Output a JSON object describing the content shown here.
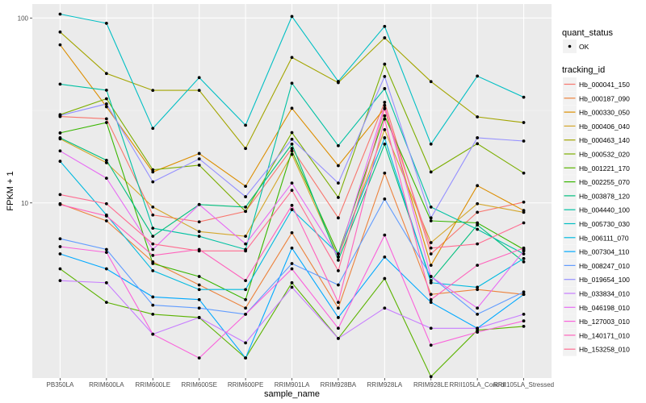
{
  "chart_data": {
    "type": "line",
    "title": "",
    "xlabel": "sample_name",
    "ylabel": "FPKM + 1",
    "yscale": "log10",
    "ylim": [
      1.13,
      119
    ],
    "yticks": [
      10,
      100
    ],
    "ytick_labels": [
      "10",
      "100"
    ],
    "grid": true,
    "legend_position": "right",
    "categories": [
      "PB350LA",
      "RRIM600LA",
      "RRIM600LE",
      "RRIM600SE",
      "RRIM600PE",
      "RRIM901LA",
      "RRIM928BA",
      "RRIM928LA",
      "RRIM928LE",
      "RRII105LA_Control",
      "RRII105LA_Stressed"
    ],
    "point_legend": {
      "title": "quant_status",
      "entries": [
        "OK"
      ]
    },
    "color_legend_title": "tracking_id",
    "series": [
      {
        "name": "Hb_000041_150",
        "color": "#F8766D",
        "values": [
          29.3,
          28.5,
          8.6,
          7.9,
          9.0,
          19.7,
          8.3,
          35.0,
          5.3,
          8.9,
          10.1
        ]
      },
      {
        "name": "Hb_000187_090",
        "color": "#EC823C",
        "values": [
          9.9,
          8.0,
          4.8,
          3.6,
          2.7,
          6.9,
          2.7,
          14.5,
          3.2,
          3.4,
          3.2
        ]
      },
      {
        "name": "Hb_000330_050",
        "color": "#DC8E00",
        "values": [
          71.6,
          33.1,
          14.7,
          18.5,
          12.3,
          32.5,
          15.9,
          32.5,
          4.6,
          12.4,
          9.1
        ]
      },
      {
        "name": "Hb_000406_040",
        "color": "#D4A62A",
        "values": [
          22.2,
          16.5,
          9.5,
          7.0,
          6.6,
          18.3,
          5.1,
          24.9,
          6.1,
          9.9,
          8.9
        ]
      },
      {
        "name": "Hb_000463_140",
        "color": "#A3A500",
        "values": [
          84.0,
          50.1,
          40.6,
          40.6,
          19.7,
          61.2,
          44.7,
          78.1,
          45.3,
          29.2,
          27.2
        ]
      },
      {
        "name": "Hb_000532_020",
        "color": "#7CAE00",
        "values": [
          30.0,
          36.6,
          15.1,
          16.0,
          9.0,
          24.0,
          10.7,
          56.3,
          14.7,
          20.9,
          14.5
        ]
      },
      {
        "name": "Hb_001221_170",
        "color": "#5BB300",
        "values": [
          4.4,
          2.9,
          2.5,
          2.4,
          1.45,
          3.7,
          1.85,
          3.9,
          1.15,
          2.05,
          2.15
        ]
      },
      {
        "name": "Hb_002255_070",
        "color": "#39B600",
        "values": [
          23.9,
          27.2,
          4.7,
          4.0,
          3.0,
          19.1,
          5.3,
          29.6,
          8.0,
          7.8,
          5.6
        ]
      },
      {
        "name": "Hb_003878_120",
        "color": "#00BF7D",
        "values": [
          22.5,
          17.0,
          6.6,
          9.8,
          9.5,
          20.8,
          4.9,
          20.8,
          3.8,
          7.6,
          4.8
        ]
      },
      {
        "name": "Hb_004440_100",
        "color": "#00C1A3",
        "values": [
          43.9,
          40.7,
          7.3,
          6.6,
          5.6,
          44.4,
          20.4,
          41.5,
          9.5,
          7.2,
          5.3
        ]
      },
      {
        "name": "Hb_005730_030",
        "color": "#00BFC4",
        "values": [
          105,
          93.6,
          25.3,
          47.6,
          26.3,
          102,
          45.4,
          90.1,
          20.8,
          48.5,
          37.3
        ]
      },
      {
        "name": "Hb_006111_070",
        "color": "#00BAE0",
        "values": [
          16.8,
          8.6,
          4.3,
          3.4,
          3.4,
          9.2,
          5.3,
          22.5,
          3.7,
          3.5,
          5.0
        ]
      },
      {
        "name": "Hb_007304_110",
        "color": "#00A9FF",
        "values": [
          5.3,
          4.4,
          3.1,
          3.0,
          1.45,
          5.7,
          2.4,
          5.1,
          2.9,
          2.1,
          3.2
        ]
      },
      {
        "name": "Hb_008247_010",
        "color": "#619CFF",
        "values": [
          6.4,
          5.6,
          2.8,
          2.7,
          2.5,
          4.7,
          3.6,
          10.5,
          4.0,
          2.5,
          3.3
        ]
      },
      {
        "name": "Hb_019654_100",
        "color": "#9590FF",
        "values": [
          29.7,
          34.3,
          13.0,
          17.3,
          10.8,
          22.1,
          12.8,
          48.3,
          8.3,
          22.5,
          21.6
        ]
      },
      {
        "name": "Hb_033834_010",
        "color": "#C77CFF",
        "values": [
          3.8,
          3.7,
          1.95,
          2.4,
          1.75,
          3.5,
          1.85,
          2.7,
          2.1,
          2.1,
          2.5
        ]
      },
      {
        "name": "Hb_046198_010",
        "color": "#E76BF3",
        "values": [
          19.1,
          13.6,
          5.6,
          9.8,
          6.0,
          12.8,
          5.1,
          33.7,
          4.0,
          2.7,
          5.5
        ]
      },
      {
        "name": "Hb_127003_010",
        "color": "#FA62DB",
        "values": [
          5.8,
          5.4,
          1.95,
          1.45,
          2.5,
          4.4,
          2.1,
          6.7,
          1.7,
          2.0,
          2.3
        ]
      },
      {
        "name": "Hb_140171_010",
        "color": "#FF62BC",
        "values": [
          9.8,
          8.5,
          5.2,
          5.6,
          3.8,
          9.7,
          2.9,
          28.4,
          3.0,
          4.6,
          5.7
        ]
      },
      {
        "name": "Hb_153258_010",
        "color": "#FF6C91",
        "values": [
          11.1,
          9.9,
          6.0,
          5.5,
          5.5,
          11.7,
          4.3,
          32.3,
          5.7,
          6.0,
          7.8
        ]
      }
    ]
  }
}
